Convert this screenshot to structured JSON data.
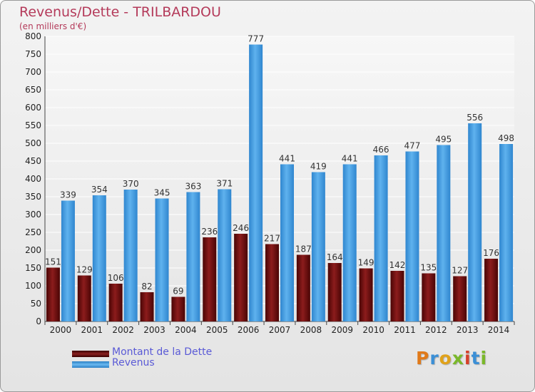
{
  "title": "Revenus/Dette - TRILBARDOU",
  "subtitle": "(en milliers d'€)",
  "logo": "Proxiti",
  "chart_data": {
    "type": "bar",
    "categories": [
      "2000",
      "2001",
      "2002",
      "2003",
      "2004",
      "2005",
      "2006",
      "2007",
      "2008",
      "2009",
      "2010",
      "2011",
      "2012",
      "2013",
      "2014"
    ],
    "series": [
      {
        "name": "Montant de la Dette",
        "color": "#6e0e0e",
        "values": [
          151,
          129,
          106,
          82,
          69,
          236,
          246,
          217,
          187,
          164,
          149,
          142,
          135,
          127,
          176
        ]
      },
      {
        "name": "Revenus",
        "color": "#4aa3e6",
        "values": [
          339,
          354,
          370,
          345,
          363,
          371,
          777,
          441,
          419,
          441,
          466,
          477,
          495,
          556,
          498
        ]
      }
    ],
    "ylim": [
      0,
      800
    ],
    "yticks": [
      0,
      50,
      100,
      150,
      200,
      250,
      300,
      350,
      400,
      450,
      500,
      550,
      600,
      650,
      700,
      750,
      800
    ],
    "grid": true,
    "legend": "bottom-left"
  }
}
